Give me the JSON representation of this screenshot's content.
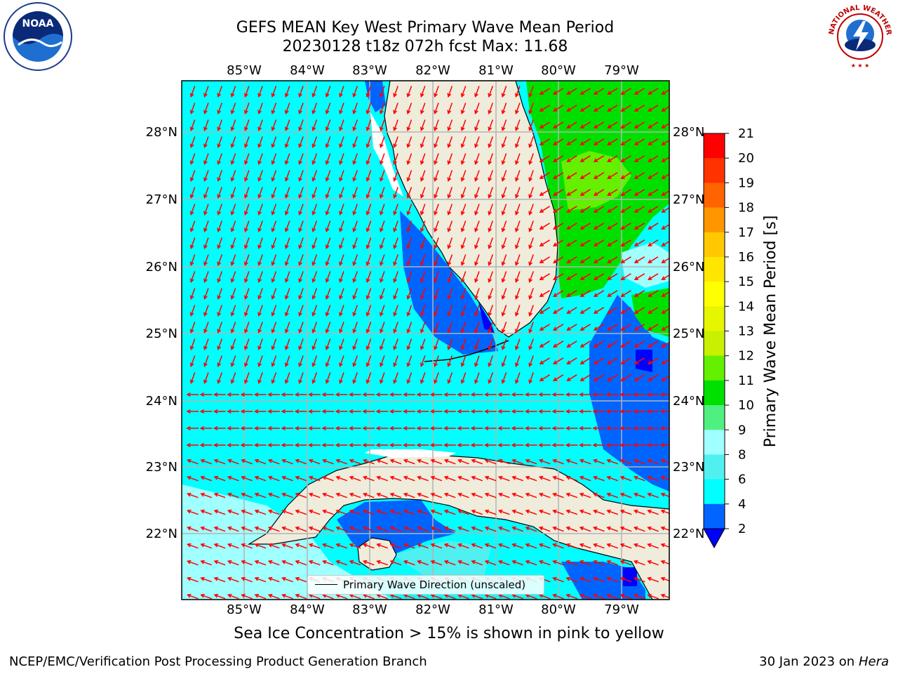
{
  "title": {
    "line1": "GEFS MEAN Key West Primary Wave Mean Period",
    "line2": "20230128 t18z 072h fcst   Max: 11.68"
  },
  "map": {
    "lon_labels": [
      "85°W",
      "84°W",
      "83°W",
      "82°W",
      "81°W",
      "80°W",
      "79°W"
    ],
    "lat_labels": [
      "28°N",
      "27°N",
      "26°N",
      "25°N",
      "24°N",
      "23°N",
      "22°N"
    ],
    "legend_label": "Primary Wave Direction (unscaled)",
    "arrow_color": "#ff0000",
    "land_color": "#efecdc",
    "grid_color": "#b4b4b4"
  },
  "colorbar": {
    "title": "Primary Wave Mean Period [s]",
    "ticks": [
      "2",
      "4",
      "6",
      "8",
      "9",
      "10",
      "11",
      "12",
      "13",
      "14",
      "15",
      "16",
      "17",
      "18",
      "19",
      "20",
      "21"
    ],
    "colors": [
      "#0000ff",
      "#0064ff",
      "#00ffff",
      "#50f0f0",
      "#a0ffff",
      "#50f080",
      "#00e000",
      "#64f000",
      "#c8f000",
      "#e6f500",
      "#ffff00",
      "#ffe600",
      "#ffc800",
      "#ff9600",
      "#ff6400",
      "#ff3200",
      "#ff0000"
    ]
  },
  "note": "Sea Ice Concentration > 15% is shown in pink to yellow",
  "footer": {
    "left": "NCEP/EMC/Verification Post Processing Product Generation Branch",
    "right_date": "30 Jan 2023 on ",
    "right_host": "Hera"
  },
  "logos": {
    "noaa": "NOAA",
    "nws_text": "NATIONAL WEATHER SERVICE"
  }
}
